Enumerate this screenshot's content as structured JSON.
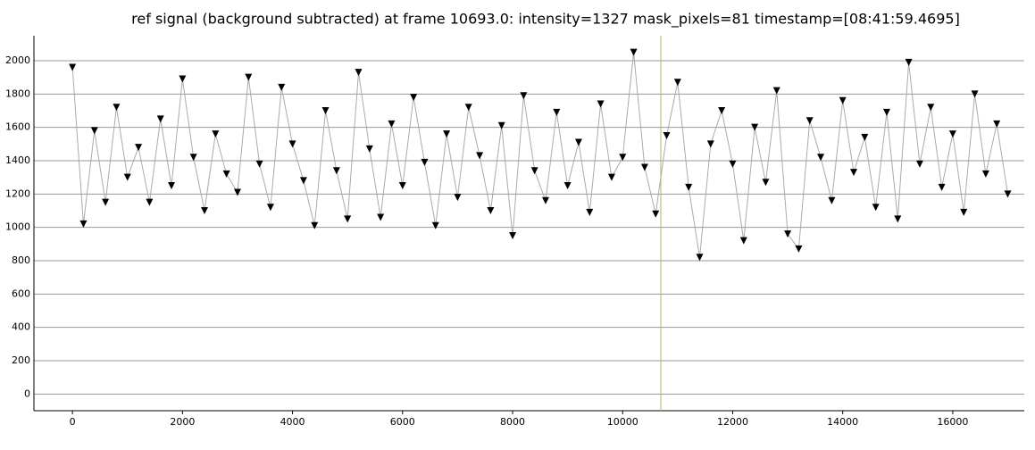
{
  "chart_data": {
    "type": "line",
    "title": "ref signal (background subtracted) at frame 10693.0: intensity=1327 mask_pixels=81 timestamp=[08:41:59.4695]",
    "x": [
      0,
      200,
      400,
      600,
      800,
      1000,
      1200,
      1400,
      1600,
      1800,
      2000,
      2200,
      2400,
      2600,
      2800,
      3000,
      3200,
      3400,
      3600,
      3800,
      4000,
      4200,
      4400,
      4600,
      4800,
      5000,
      5200,
      5400,
      5600,
      5800,
      6000,
      6200,
      6400,
      6600,
      6800,
      7000,
      7200,
      7400,
      7600,
      7800,
      8000,
      8200,
      8400,
      8600,
      8800,
      9000,
      9200,
      9400,
      9600,
      9800,
      10000,
      10200,
      10400,
      10600,
      10800,
      11000,
      11200,
      11400,
      11600,
      11800,
      12000,
      12200,
      12400,
      12600,
      12800,
      13000,
      13200,
      13400,
      13600,
      13800,
      14000,
      14200,
      14400,
      14600,
      14800,
      15000,
      15200,
      15400,
      15600,
      15800,
      16000,
      16200,
      16400,
      16600,
      16800,
      17000
    ],
    "values": [
      1960,
      1020,
      1580,
      1150,
      1720,
      1300,
      1480,
      1150,
      1650,
      1250,
      1890,
      1420,
      1100,
      1560,
      1320,
      1210,
      1900,
      1380,
      1120,
      1840,
      1500,
      1280,
      1010,
      1700,
      1340,
      1050,
      1930,
      1470,
      1060,
      1620,
      1250,
      1780,
      1390,
      1010,
      1560,
      1180,
      1720,
      1430,
      1100,
      1610,
      950,
      1790,
      1340,
      1160,
      1690,
      1250,
      1510,
      1090,
      1740,
      1300,
      1420,
      2050,
      1360,
      1080,
      1550,
      1870,
      1240,
      820,
      1500,
      1700,
      1380,
      920,
      1600,
      1270,
      1820,
      960,
      870,
      1640,
      1420,
      1160,
      1760,
      1330,
      1540,
      1120,
      1690,
      1050,
      1990,
      1380,
      1720,
      1240,
      1560,
      1090,
      1800,
      1320,
      1620,
      1200
    ],
    "color": "#000000",
    "line_color": "#aaaaaa",
    "marker": "v",
    "cursor_x": 10693,
    "cursor_color": "#b5b56a",
    "xlim": [
      -700,
      17300
    ],
    "xticks": [
      0,
      2000,
      4000,
      6000,
      8000,
      10000,
      12000,
      14000,
      16000
    ],
    "ylim": [
      -100,
      2150
    ],
    "yticks": [
      0,
      200,
      400,
      600,
      800,
      1000,
      1200,
      1400,
      1600,
      1800,
      2000
    ],
    "grid": true
  }
}
